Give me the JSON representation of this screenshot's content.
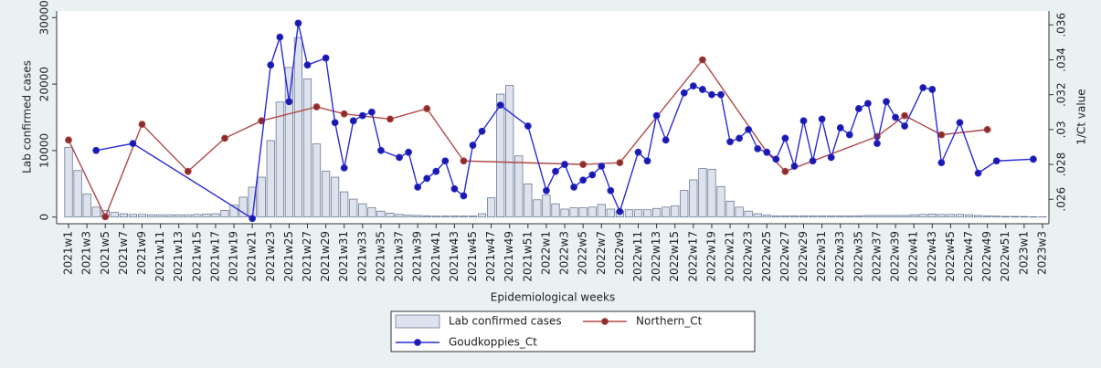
{
  "chart_data": {
    "type": "bar",
    "x_label": "Epidemiological weeks",
    "y_label": "Lab confirmed cases",
    "y2_label": "1/Ct value",
    "categories": [
      "2021w1",
      null,
      "2021w3",
      null,
      "2021w5",
      null,
      "2021w7",
      null,
      "2021w9",
      null,
      "2021w11",
      null,
      "2021w13",
      null,
      "2021w15",
      null,
      "2021w17",
      null,
      "2021w19",
      null,
      "2021w21",
      null,
      "2021w23",
      null,
      "2021w25",
      null,
      "2021w27",
      null,
      "2021w29",
      null,
      "2021w31",
      null,
      "2021w33",
      null,
      "2021w35",
      null,
      "2021w37",
      null,
      "2021w39",
      null,
      "2021w41",
      null,
      "2021w43",
      null,
      "2021w45",
      null,
      "2021w47",
      null,
      "2021w49",
      null,
      "2021w51",
      null,
      "2022w1",
      null,
      "2022w3",
      null,
      "2022w5",
      null,
      "2022w7",
      null,
      "2022w9",
      null,
      "2022w11",
      null,
      "2022w13",
      null,
      "2022w15",
      null,
      "2022w17",
      null,
      "2022w19",
      null,
      "2022w21",
      null,
      "2022w23",
      null,
      "2022w25",
      null,
      "2022w27",
      null,
      "2022w29",
      null,
      "2022w31",
      null,
      "2022w33",
      null,
      "2022w35",
      null,
      "2022w37",
      null,
      "2022w39",
      null,
      "2022w41",
      null,
      "2022w43",
      null,
      "2022w45",
      null,
      "2022w47",
      null,
      "2022w49",
      null,
      "2022w51",
      null,
      "2023w1",
      null,
      "2023w3"
    ],
    "series": [
      {
        "name": "Lab confirmed cases",
        "type": "bar",
        "color": "#dde2ec",
        "edge_color": "#5b6b8c",
        "values": [
          10500,
          7000,
          3500,
          1500,
          1000,
          700,
          500,
          400,
          400,
          350,
          350,
          350,
          350,
          350,
          400,
          450,
          500,
          1000,
          1800,
          3000,
          4500,
          6000,
          11500,
          17300,
          22500,
          27000,
          20800,
          11000,
          6900,
          6000,
          3800,
          2700,
          2000,
          1400,
          900,
          600,
          400,
          300,
          250,
          200,
          150,
          150,
          150,
          150,
          150,
          500,
          2900,
          18500,
          19800,
          9200,
          5000,
          2600,
          3300,
          2000,
          1200,
          1400,
          1400,
          1500,
          1900,
          1200,
          900,
          1100,
          1100,
          1100,
          1300,
          1500,
          1700,
          4000,
          5600,
          7300,
          7200,
          4600,
          2400,
          1500,
          900,
          500,
          300,
          200,
          200,
          200,
          200,
          200,
          200,
          200,
          200,
          200,
          200,
          250,
          250,
          250,
          250,
          250,
          350,
          400,
          450,
          400,
          400,
          400,
          350,
          250,
          200,
          150,
          100,
          100,
          80,
          50,
          30
        ]
      },
      {
        "name": "Northern_Ct",
        "type": "line",
        "axis": "y2",
        "color": "#b24848",
        "marker_color": "#8a2c2c",
        "x": [
          "2021w1",
          "2021w5",
          "2021w9",
          "2021w14",
          "2021w18",
          "2021w22",
          "2021w28",
          "2021w31",
          "2021w36",
          "2021w40",
          "2021w44",
          "2022w5",
          "2022w9",
          "2022w18",
          "2022w25",
          "2022w27",
          "2022w37",
          "2022w40",
          "2022w44",
          "2022w49"
        ],
        "values": [
          0.0294,
          0.025,
          0.0303,
          0.0276,
          0.0295,
          0.0305,
          0.0313,
          0.0309,
          0.0306,
          0.0312,
          0.0282,
          0.028,
          0.0281,
          0.034,
          0.0287,
          0.0276,
          0.0296,
          0.0308,
          0.0297,
          0.03
        ]
      },
      {
        "name": "Goudkoppies_Ct",
        "type": "line",
        "axis": "y2",
        "color": "#2a2ad6",
        "marker_color": "#1a1aa8",
        "x": [
          "2021w4",
          "2021w8",
          "2021w21",
          "2021w23",
          "2021w24",
          "2021w25",
          "2021w26",
          "2021w27",
          "2021w29",
          "2021w30",
          "2021w31",
          "2021w32",
          "2021w33",
          "2021w34",
          "2021w35",
          "2021w37",
          "2021w38",
          "2021w39",
          "2021w40",
          "2021w41",
          "2021w42",
          "2021w43",
          "2021w44",
          "2021w45",
          "2021w46",
          "2021w48",
          "2021w51",
          "2022w1",
          "2022w2",
          "2022w3",
          "2022w4",
          "2022w5",
          "2022w6",
          "2022w7",
          "2022w8",
          "2022w9",
          "2022w11",
          "2022w12",
          "2022w13",
          "2022w14",
          "2022w16",
          "2022w17",
          "2022w18",
          "2022w19",
          "2022w20",
          "2022w21",
          "2022w22",
          "2022w23",
          "2022w24",
          "2022w25",
          "2022w26",
          "2022w27",
          "2022w28",
          "2022w29",
          "2022w30",
          "2022w31",
          "2022w32",
          "2022w33",
          "2022w34",
          "2022w35",
          "2022w36",
          "2022w37",
          "2022w38",
          "2022w39",
          "2022w40",
          "2022w42",
          "2022w43",
          "2022w44",
          "2022w46",
          "2022w48",
          "2022w50",
          "2023w2"
        ],
        "values": [
          0.0288,
          0.0292,
          0.0249,
          0.0337,
          0.0353,
          0.0316,
          0.0361,
          0.0337,
          0.0341,
          0.0304,
          0.0278,
          0.0305,
          0.0308,
          0.031,
          0.0288,
          0.0284,
          0.0287,
          0.0267,
          0.0272,
          0.0276,
          0.0282,
          0.0266,
          0.0262,
          0.0291,
          0.0299,
          0.0314,
          0.0302,
          0.0265,
          0.0276,
          0.028,
          0.0267,
          0.0271,
          0.0274,
          0.0279,
          0.0265,
          0.0253,
          0.0287,
          0.0282,
          0.0308,
          0.0294,
          0.0321,
          0.0325,
          0.0323,
          0.032,
          0.032,
          0.0293,
          0.0295,
          0.03,
          0.0289,
          0.0287,
          0.0283,
          0.0295,
          0.0279,
          0.0305,
          0.0282,
          0.0306,
          0.0284,
          0.0301,
          0.0297,
          0.0312,
          0.0315,
          0.0292,
          0.0316,
          0.0307,
          0.0302,
          0.0324,
          0.0323,
          0.0281,
          0.0304,
          0.0275,
          0.0282,
          0.0283
        ]
      }
    ],
    "ylim": [
      -1000,
      31000
    ],
    "yticks": [
      0,
      10000,
      20000,
      30000
    ],
    "y2lim": [
      0.0246,
      0.0368
    ],
    "y2ticks": [
      {
        "value": 0.026,
        "label": ".026"
      },
      {
        "value": 0.028,
        "label": ".028"
      },
      {
        "value": 0.03,
        "label": ".03"
      },
      {
        "value": 0.032,
        "label": ".032"
      },
      {
        "value": 0.034,
        "label": ".034"
      },
      {
        "value": 0.036,
        "label": ".036"
      }
    ],
    "grid": false
  }
}
